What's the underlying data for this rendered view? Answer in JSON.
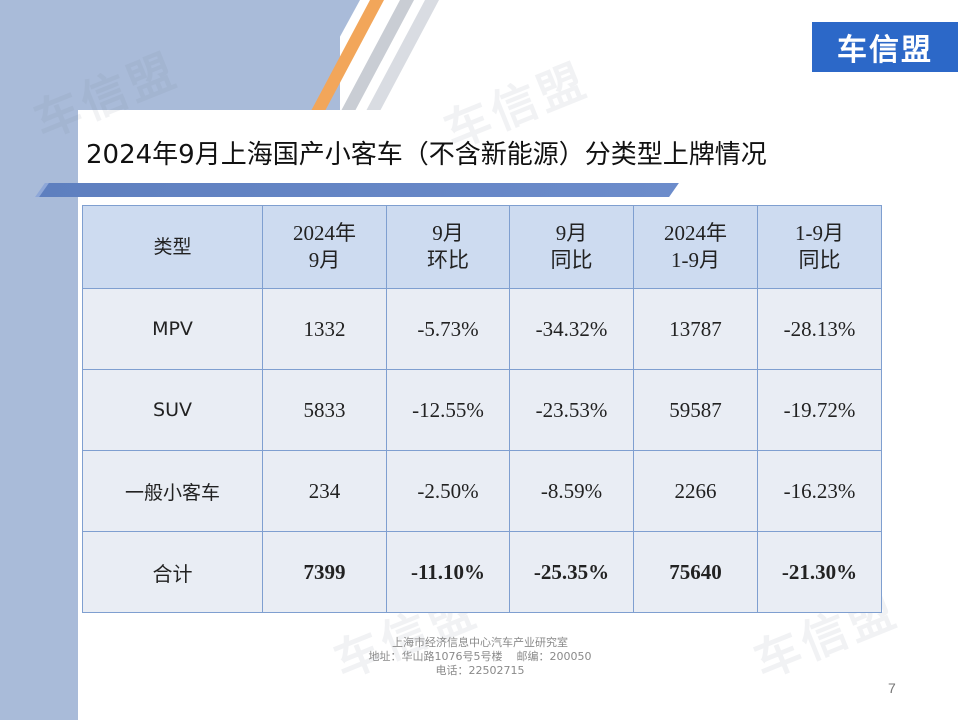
{
  "brand": {
    "logo_text": "车信盟",
    "watermark_text": "车信盟"
  },
  "slide": {
    "title": "2024年9月上海国产小客车（不含新能源）分类型上牌情况",
    "page_number": "7"
  },
  "table": {
    "headers": [
      [
        "类型"
      ],
      [
        "2024年",
        "9月"
      ],
      [
        "9月",
        "环比"
      ],
      [
        "9月",
        "同比"
      ],
      [
        "2024年",
        "1-9月"
      ],
      [
        "1-9月",
        "同比"
      ]
    ],
    "rows": [
      [
        "MPV",
        "1332",
        "-5.73%",
        "-34.32%",
        "13787",
        "-28.13%"
      ],
      [
        "SUV",
        "5833",
        "-12.55%",
        "-23.53%",
        "59587",
        "-19.72%"
      ],
      [
        "一般小客车",
        "234",
        "-2.50%",
        "-8.59%",
        "2266",
        "-16.23%"
      ],
      [
        "合计",
        "7399",
        "-11.10%",
        "-25.35%",
        "75640",
        "-21.30%"
      ]
    ]
  },
  "footer": {
    "line1": "上海市经济信息中心汽车产业研究室",
    "line2": "地址：华山路1076号5号楼    邮编：200050",
    "line3": "电话：22502715"
  },
  "colors": {
    "accent_blue": "#2c68c8",
    "header_fill": "#cddbf0",
    "cell_fill": "#e9edf4",
    "side_band": "#a9bbd9",
    "stripe_orange": "#f2a65a"
  }
}
